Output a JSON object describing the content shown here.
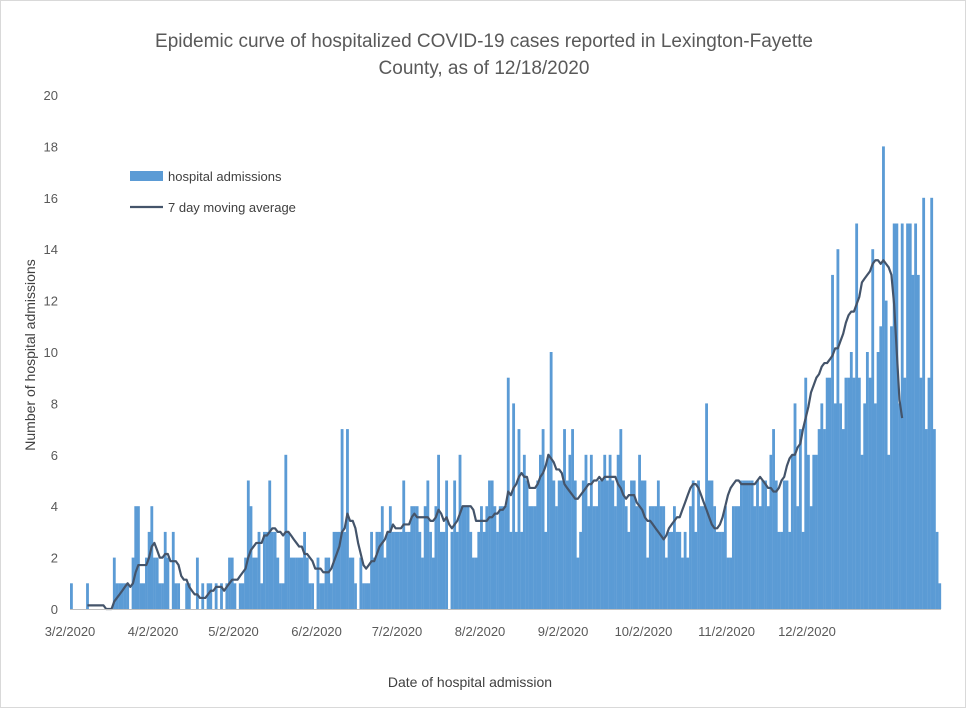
{
  "chart_data": {
    "type": "bar",
    "title_line1": "Epidemic curve of hospitalized COVID-19 cases reported in Lexington-Fayette",
    "title_line2": "County, as of 12/18/2020",
    "xlabel": "Date of hospital admission",
    "ylabel": "Number of hospital admissions",
    "ylim": [
      0,
      20
    ],
    "y_ticks": [
      "0",
      "2",
      "4",
      "6",
      "8",
      "10",
      "12",
      "14",
      "16",
      "18",
      "20"
    ],
    "x_tick_labels": [
      "3/2/2020",
      "4/2/2020",
      "5/2/2020",
      "6/2/2020",
      "7/2/2020",
      "8/2/2020",
      "9/2/2020",
      "10/2/2020",
      "11/2/2020",
      "12/2/2020"
    ],
    "x_start": "2020-03-02",
    "x_end": "2020-12-18",
    "colors": {
      "bars": "#5b9bd5",
      "line": "#44546a",
      "axis": "#bfbfbf"
    },
    "legend_position": "top-left",
    "series": [
      {
        "name": "hospital admissions",
        "kind": "bar",
        "values": [
          1,
          0,
          0,
          0,
          0,
          0,
          1,
          0,
          0,
          0,
          0,
          0,
          0,
          0,
          0,
          0,
          2,
          1,
          1,
          1,
          1,
          1,
          0,
          2,
          4,
          4,
          1,
          1,
          2,
          3,
          4,
          2,
          2,
          1,
          1,
          3,
          2,
          0,
          3,
          1,
          1,
          0,
          0,
          1,
          1,
          0,
          0,
          2,
          0,
          1,
          0,
          1,
          1,
          0,
          1,
          0,
          1,
          0,
          1,
          2,
          2,
          1,
          0,
          1,
          1,
          2,
          5,
          4,
          2,
          2,
          3,
          1,
          3,
          3,
          5,
          3,
          3,
          2,
          1,
          1,
          6,
          3,
          2,
          2,
          2,
          2,
          2,
          3,
          2,
          1,
          1,
          0,
          2,
          1,
          1,
          2,
          2,
          1,
          3,
          3,
          3,
          7,
          3,
          7,
          2,
          2,
          1,
          0,
          2,
          1,
          1,
          1,
          3,
          2,
          3,
          3,
          4,
          2,
          3,
          4,
          3,
          3,
          3,
          3,
          5,
          3,
          3,
          4,
          4,
          4,
          3,
          2,
          4,
          5,
          3,
          2,
          4,
          6,
          3,
          3,
          5,
          0,
          3,
          5,
          3,
          6,
          4,
          4,
          4,
          3,
          2,
          2,
          3,
          4,
          3,
          4,
          5,
          5,
          4,
          3,
          4,
          4,
          4,
          9,
          3,
          8,
          3,
          7,
          3,
          6,
          5,
          4,
          4,
          4,
          5,
          6,
          7,
          3,
          6,
          10,
          5,
          4,
          5,
          5,
          7,
          5,
          6,
          7,
          5,
          2,
          3,
          5,
          6,
          4,
          6,
          4,
          4,
          5,
          5,
          6,
          5,
          6,
          5,
          4,
          6,
          7,
          5,
          4,
          3,
          5,
          5,
          4,
          6,
          5,
          5,
          2,
          4,
          4,
          4,
          5,
          4,
          4,
          2,
          3,
          3,
          4,
          3,
          3,
          2,
          3,
          2,
          4,
          5,
          3,
          5,
          4,
          4,
          8,
          5,
          5,
          4,
          3,
          3,
          3,
          4,
          2,
          2,
          4,
          4,
          4,
          5,
          5,
          5,
          5,
          5,
          4,
          5,
          4,
          5,
          5,
          4,
          6,
          7,
          5,
          3,
          3,
          5,
          5,
          3,
          6,
          8,
          4,
          7,
          3,
          9,
          6,
          4,
          6,
          6,
          7,
          8,
          7,
          9,
          9,
          13,
          8,
          14,
          8,
          7,
          9,
          9,
          10,
          9,
          15,
          9,
          6,
          8,
          10,
          9,
          14,
          8,
          10,
          11,
          18,
          12,
          6,
          11,
          15,
          15,
          8,
          15,
          9,
          15,
          15,
          13,
          15,
          13,
          9,
          16,
          7,
          9,
          16,
          7,
          3,
          1
        ]
      },
      {
        "name": "7 day moving average",
        "kind": "line",
        "values": [
          null,
          null,
          null,
          null,
          null,
          null,
          0.14,
          0.14,
          0.14,
          0.14,
          0.14,
          0.14,
          0.14,
          0.0,
          0.0,
          0.0,
          0.29,
          0.43,
          0.57,
          0.71,
          0.86,
          1.0,
          0.86,
          1.0,
          1.43,
          1.71,
          1.71,
          1.71,
          1.71,
          2.0,
          2.43,
          2.57,
          2.29,
          2.0,
          2.0,
          2.14,
          2.14,
          1.86,
          1.86,
          1.86,
          1.71,
          1.29,
          1.14,
          1.14,
          0.86,
          0.71,
          0.57,
          0.57,
          0.43,
          0.43,
          0.43,
          0.57,
          0.71,
          0.71,
          0.86,
          0.86,
          0.86,
          0.71,
          0.86,
          1.0,
          1.14,
          1.14,
          1.14,
          1.29,
          1.43,
          1.57,
          2.0,
          2.29,
          2.43,
          2.57,
          2.57,
          2.57,
          2.86,
          2.86,
          3.0,
          3.14,
          3.14,
          3.0,
          3.0,
          2.86,
          3.0,
          3.0,
          2.86,
          2.71,
          2.57,
          2.43,
          2.43,
          2.14,
          2.14,
          2.0,
          1.86,
          1.57,
          1.57,
          1.57,
          1.43,
          1.43,
          1.43,
          1.57,
          1.86,
          2.14,
          2.43,
          3.0,
          3.14,
          3.71,
          3.43,
          3.43,
          3.14,
          2.57,
          2.14,
          1.71,
          1.57,
          1.71,
          1.86,
          1.86,
          2.14,
          2.43,
          2.57,
          2.71,
          3.0,
          3.0,
          3.29,
          3.14,
          3.14,
          3.14,
          3.29,
          3.29,
          3.29,
          3.57,
          3.71,
          3.57,
          3.57,
          3.57,
          3.57,
          3.57,
          3.43,
          3.43,
          3.57,
          3.86,
          3.71,
          3.43,
          3.57,
          3.29,
          3.14,
          3.29,
          3.43,
          3.71,
          4.0,
          4.0,
          4.0,
          4.0,
          3.86,
          3.43,
          3.43,
          3.43,
          3.43,
          3.43,
          3.57,
          3.57,
          3.71,
          3.71,
          3.86,
          3.86,
          4.0,
          4.57,
          4.43,
          4.71,
          4.86,
          5.14,
          5.29,
          5.14,
          5.14,
          4.71,
          4.71,
          4.71,
          4.86,
          5.14,
          5.29,
          5.57,
          6.0,
          5.86,
          5.71,
          5.43,
          5.43,
          5.29,
          4.86,
          4.71,
          4.57,
          4.43,
          4.29,
          4.29,
          4.43,
          4.57,
          4.71,
          4.86,
          4.86,
          5.0,
          5.0,
          5.14,
          5.0,
          5.14,
          5.14,
          5.14,
          5.14,
          5.14,
          4.86,
          4.71,
          4.43,
          4.29,
          4.43,
          4.43,
          4.43,
          4.14,
          4.0,
          3.86,
          3.57,
          3.43,
          3.43,
          3.29,
          3.14,
          3.0,
          2.86,
          2.71,
          2.86,
          3.14,
          3.29,
          3.43,
          3.57,
          3.57,
          3.86,
          4.14,
          4.43,
          4.71,
          4.86,
          4.86,
          4.71,
          4.43,
          4.14,
          3.86,
          3.57,
          3.29,
          3.14,
          3.14,
          3.29,
          3.57,
          4.0,
          4.43,
          4.71,
          4.86,
          5.0,
          5.0,
          4.86,
          4.86,
          4.86,
          4.86,
          4.86,
          4.86,
          5.0,
          5.14,
          5.0,
          4.86,
          4.71,
          4.71,
          4.57,
          4.57,
          4.71,
          5.0,
          5.14,
          5.57,
          5.86,
          6.0,
          6.0,
          6.29,
          6.43,
          7.0,
          7.43,
          7.86,
          8.43,
          8.71,
          9.0,
          9.14,
          9.43,
          9.57,
          9.57,
          9.71,
          9.86,
          10.14,
          10.14,
          10.43,
          10.71,
          11.14,
          11.43,
          11.57,
          11.57,
          11.86,
          12.14,
          12.71,
          12.86,
          13.0,
          13.14,
          13.43,
          13.57,
          13.57,
          13.43,
          13.57,
          13.43,
          13.29,
          13.0,
          11.86,
          10.0,
          8.14,
          7.43
        ]
      }
    ]
  }
}
